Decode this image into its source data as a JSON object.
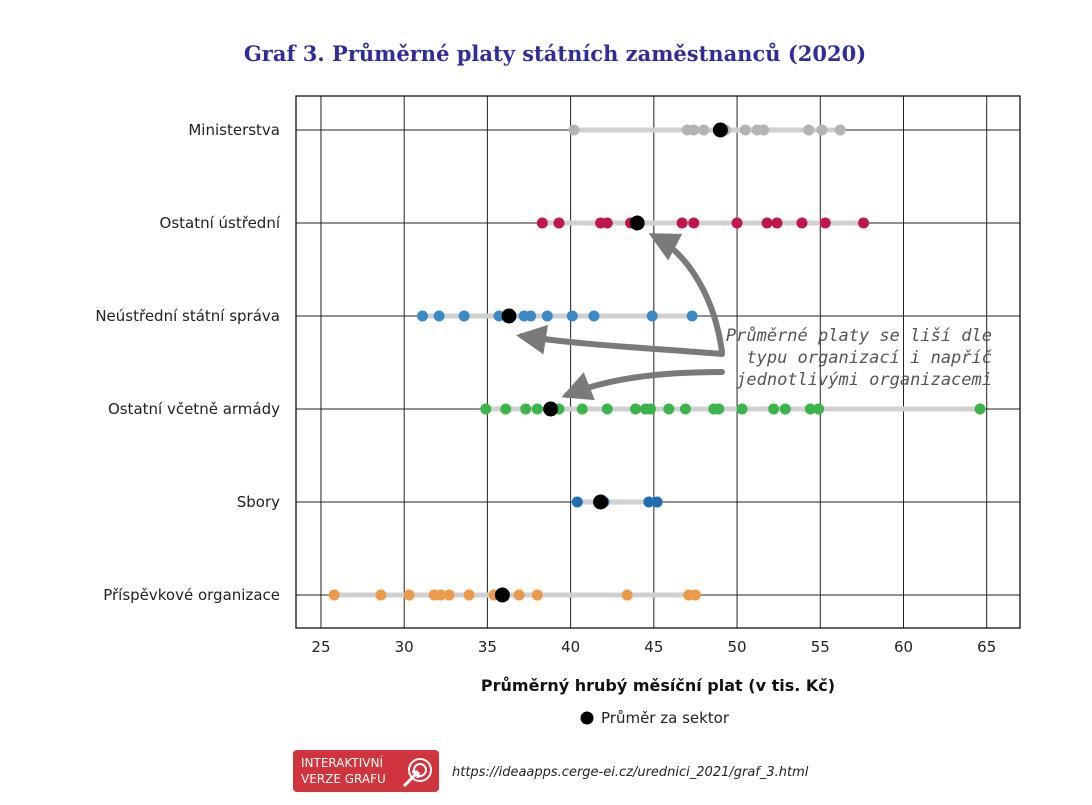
{
  "chart_data": {
    "type": "scatter",
    "title": "Graf 3. Průměrné platy státních zaměstnanců (2020)",
    "xlabel": "Průměrný hrubý měsíční plat (v tis. Kč)",
    "ylabel": "",
    "xlim": [
      23.5,
      67
    ],
    "xticks": [
      25,
      30,
      35,
      40,
      45,
      50,
      55,
      60,
      65
    ],
    "grid": true,
    "legend": {
      "label": "Průměr za sektor",
      "placement": "bottom-center"
    },
    "annotation": {
      "lines": [
        "Průměrné platy se liší dle",
        "typu organizací i napříč",
        "jednotlivými organizacemi"
      ]
    },
    "categories": [
      {
        "name": "Ministerstva",
        "color": "#b4b4b4",
        "mean": 49.0,
        "points": [
          40.2,
          47.0,
          47.4,
          48.0,
          49.3,
          50.5,
          51.2,
          51.6,
          54.3,
          55.1,
          56.2
        ]
      },
      {
        "name": "Ostatní ústřední",
        "color": "#c0164a",
        "mean": 44.0,
        "points": [
          38.3,
          39.3,
          41.8,
          42.2,
          43.6,
          46.7,
          47.4,
          50.0,
          51.8,
          52.4,
          53.9,
          55.3,
          57.6
        ]
      },
      {
        "name": "Neústřední státní správa",
        "color": "#3a8ac8",
        "mean": 36.3,
        "points": [
          31.1,
          32.1,
          33.6,
          35.7,
          37.2,
          37.6,
          38.6,
          40.1,
          41.4,
          44.9,
          47.3
        ]
      },
      {
        "name": "Ostatní včetně armády",
        "color": "#3ab54a",
        "mean": 38.8,
        "points": [
          34.9,
          36.1,
          37.3,
          38.0,
          39.3,
          40.7,
          42.2,
          43.9,
          44.5,
          44.8,
          45.9,
          46.9,
          48.6,
          48.9,
          50.3,
          52.2,
          52.9,
          54.4,
          54.9,
          64.6
        ]
      },
      {
        "name": "Sbory",
        "color": "#1f6eb4",
        "mean": 41.8,
        "points": [
          40.4,
          42.0,
          44.7,
          45.2
        ]
      },
      {
        "name": "Příspěvkové organizace",
        "color": "#eb9a4a",
        "mean": 35.9,
        "points": [
          25.8,
          28.6,
          30.3,
          31.8,
          32.2,
          32.7,
          33.9,
          35.4,
          36.9,
          38.0,
          43.4,
          47.1,
          47.5
        ]
      }
    ]
  },
  "footer": {
    "badge_line1": "INTERAKTIVNÍ",
    "badge_line2": "VERZE GRAFU",
    "url": "https://ideaapps.cerge-ei.cz/urednici_2021/graf_3.html",
    "badge_color": "#d0343c"
  }
}
